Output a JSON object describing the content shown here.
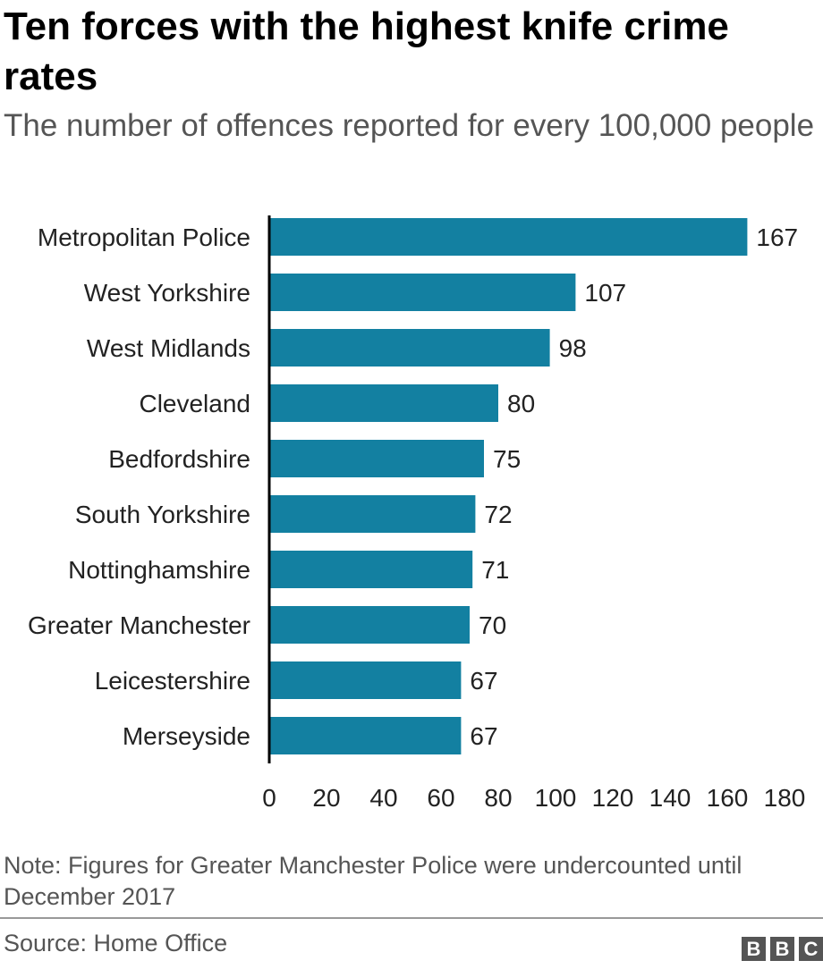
{
  "chart_data": {
    "type": "bar",
    "orientation": "horizontal",
    "title": "Ten forces with the highest knife crime rates",
    "subtitle": "The number of offences reported for every 100,000 people",
    "categories": [
      "Metropolitan Police",
      "West Yorkshire",
      "West Midlands",
      "Cleveland",
      "Bedfordshire",
      "South Yorkshire",
      "Nottinghamshire",
      "Greater Manchester",
      "Leicestershire",
      "Merseyside"
    ],
    "values": [
      167,
      107,
      98,
      80,
      75,
      72,
      71,
      70,
      67,
      67
    ],
    "xlim": [
      0,
      180
    ],
    "xticks": [
      0,
      20,
      40,
      60,
      80,
      100,
      120,
      140,
      160,
      180
    ],
    "xlabel": "",
    "ylabel": "",
    "grid": false,
    "bar_color": "#1380A1"
  },
  "note": "Note: Figures for Greater Manchester Police were undercounted until December 2017",
  "source": "Source: Home Office",
  "logo_letters": [
    "B",
    "B",
    "C"
  ],
  "colors": {
    "bar": "#1380A1",
    "title": "#000000",
    "subtitle": "#555555",
    "axis": "#000000"
  }
}
